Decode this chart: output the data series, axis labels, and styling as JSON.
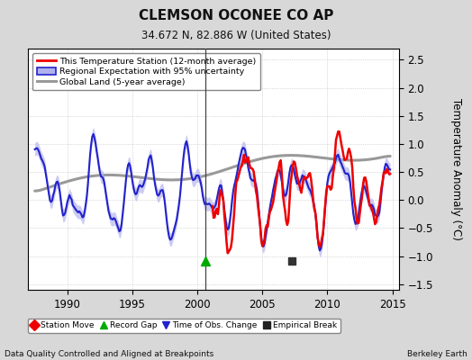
{
  "title": "CLEMSON OCONEE CO AP",
  "subtitle": "34.672 N, 82.886 W (United States)",
  "ylabel": "Temperature Anomaly (°C)",
  "footer_left": "Data Quality Controlled and Aligned at Breakpoints",
  "footer_right": "Berkeley Earth",
  "xlim": [
    1987.0,
    2015.5
  ],
  "ylim": [
    -1.6,
    2.7
  ],
  "yticks": [
    -1.5,
    -1.0,
    -0.5,
    0.0,
    0.5,
    1.0,
    1.5,
    2.0,
    2.5
  ],
  "xticks": [
    1990,
    1995,
    2000,
    2005,
    2010,
    2015
  ],
  "bg_color": "#d8d8d8",
  "plot_bg_color": "#ffffff",
  "grid_color": "#bbbbbb",
  "station_color": "#ee0000",
  "regional_color": "#2222cc",
  "regional_fill_color": "#b0b0ee",
  "global_color": "#999999",
  "vertical_line_x": 2000.6,
  "record_gap_x": 2000.6,
  "empirical_break_x": 2007.3,
  "legend_labels": [
    "This Temperature Station (12-month average)",
    "Regional Expectation with 95% uncertainty",
    "Global Land (5-year average)"
  ],
  "bottom_legend": [
    {
      "label": "Station Move",
      "color": "#ee0000",
      "marker": "D"
    },
    {
      "label": "Record Gap",
      "color": "#00aa00",
      "marker": "^"
    },
    {
      "label": "Time of Obs. Change",
      "color": "#2222cc",
      "marker": "v"
    },
    {
      "label": "Empirical Break",
      "color": "#222222",
      "marker": "s"
    }
  ]
}
